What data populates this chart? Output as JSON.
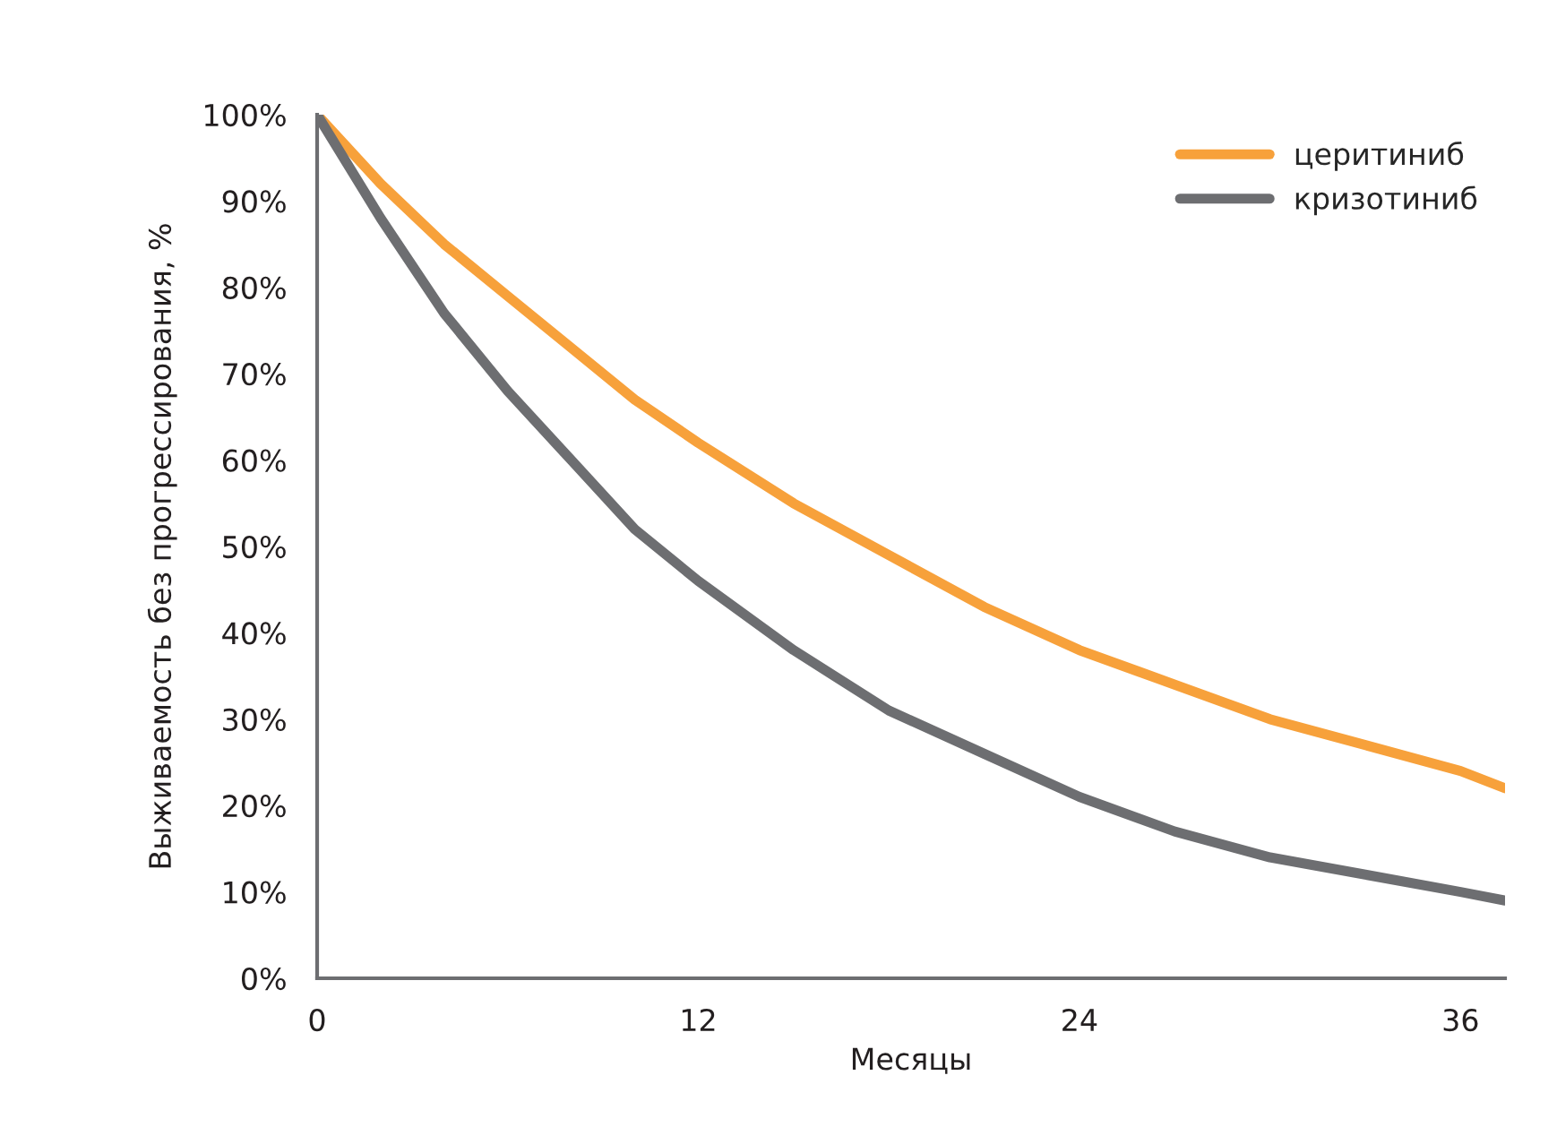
{
  "chart_data": {
    "type": "line",
    "xlabel": "Месяцы",
    "ylabel": "Выживаемость без прогрессирования, %",
    "x": [
      0,
      2,
      4,
      6,
      8,
      10,
      12,
      15,
      18,
      21,
      24,
      27,
      30,
      33,
      36,
      37.4
    ],
    "series": [
      {
        "name": "церитиниб",
        "color": "#f7a13b",
        "values": [
          100,
          92,
          85,
          79,
          73,
          67,
          62,
          55,
          49,
          43,
          38,
          34,
          30,
          27,
          24,
          22
        ]
      },
      {
        "name": "кризотиниб",
        "color": "#6d6e71",
        "values": [
          100,
          88,
          77,
          68,
          60,
          52,
          46,
          38,
          31,
          26,
          21,
          17,
          14,
          12,
          10,
          9
        ]
      }
    ],
    "xlim": [
      0,
      37.4
    ],
    "xticks": [
      0,
      12,
      24,
      36
    ],
    "ylim": [
      0,
      100
    ],
    "yticks": [
      {
        "value": 0,
        "label": "0%"
      },
      {
        "value": 10,
        "label": "10%"
      },
      {
        "value": 20,
        "label": "20%"
      },
      {
        "value": 30,
        "label": "30%"
      },
      {
        "value": 40,
        "label": "40%"
      },
      {
        "value": 50,
        "label": "50%"
      },
      {
        "value": 60,
        "label": "60%"
      },
      {
        "value": 70,
        "label": "70%"
      },
      {
        "value": 80,
        "label": "80%"
      },
      {
        "value": 90,
        "label": "90%"
      },
      {
        "value": 100,
        "label": "100%"
      }
    ],
    "grid": false,
    "legend": "top right",
    "line_style": "solid",
    "marker": "none"
  }
}
